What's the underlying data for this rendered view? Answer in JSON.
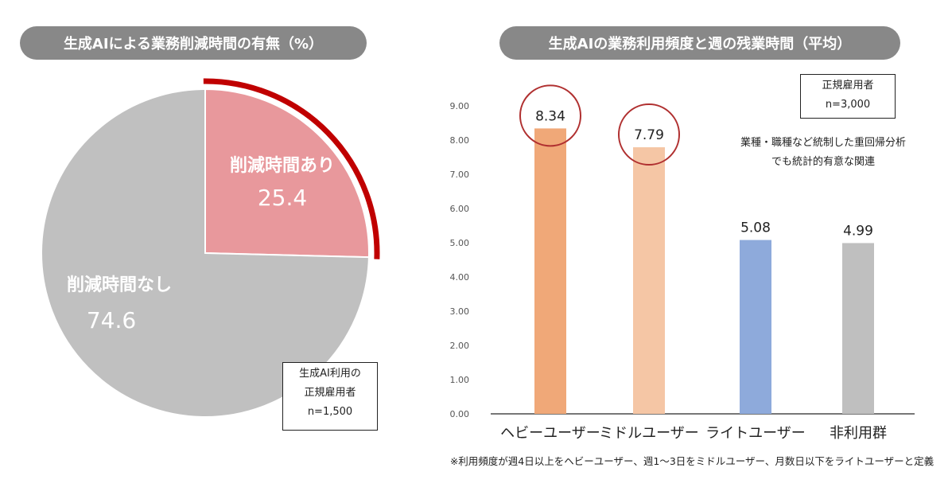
{
  "chart_data": [
    {
      "type": "pie",
      "title": "生成AIによる業務削減時間の有無（%）",
      "slices": [
        {
          "label": "削減時間あり",
          "value": 25.4,
          "color": "#e8989c"
        },
        {
          "label": "削減時間なし",
          "value": 74.6,
          "color": "#c0c0c0"
        }
      ],
      "highlight_color": "#c00000",
      "annotation": [
        "生成AI利用の",
        "正規雇用者",
        "n=1,500"
      ]
    },
    {
      "type": "bar",
      "title": "生成AIの業務利用頻度と週の残業時間（平均）",
      "categories": [
        "ヘビーユーザー",
        "ミドルユーザー",
        "ライトユーザー",
        "非利用群"
      ],
      "values": [
        8.34,
        7.79,
        5.08,
        4.99
      ],
      "colors": [
        "#f0a878",
        "#f5c6a5",
        "#8eaadb",
        "#bfbfbf"
      ],
      "ylim": [
        0,
        9
      ],
      "yticks": [
        "0.00",
        "1.00",
        "2.00",
        "3.00",
        "4.00",
        "5.00",
        "6.00",
        "7.00",
        "8.00",
        "9.00"
      ],
      "grid": false,
      "circled": [
        "ヘビーユーザー",
        "ミドルユーザー"
      ],
      "annotation_box": [
        "正規雇用者",
        "n=3,000"
      ],
      "note": [
        "業種・職種など統制した重回帰分析",
        "でも統計的有意な関連"
      ],
      "footnote": "※利用頻度が週4日以上をヘビーユーザー、週1～3日をミドルユーザー、月数日以下をライトユーザーと定義"
    }
  ]
}
